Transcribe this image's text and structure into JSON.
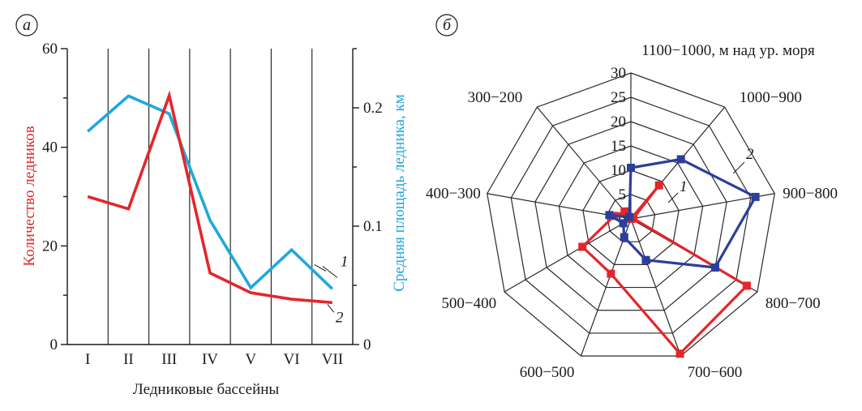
{
  "panel_labels": {
    "left": "а",
    "right": "б"
  },
  "chart_data": [
    {
      "type": "line",
      "panel": "а",
      "title": "",
      "xlabel": "Ледниковые бассейны",
      "ylabel_left": "Количество ледников",
      "ylabel_right": "Средняя площадь ледника, км",
      "categories": [
        "I",
        "II",
        "III",
        "IV",
        "V",
        "VI",
        "VII"
      ],
      "y_left": {
        "ylim": [
          0,
          60
        ],
        "ticks": [
          "0",
          "20",
          "40",
          "60"
        ],
        "tick_values": [
          0,
          20,
          40,
          60
        ]
      },
      "y_right": {
        "ylim": [
          0,
          0.25
        ],
        "ticks": [
          "0",
          "0.1",
          "0.2"
        ],
        "tick_values": [
          0,
          0.1,
          0.2
        ]
      },
      "series": [
        {
          "name": "1",
          "label": "1",
          "axis": "right",
          "color": "#1fa8dc",
          "values": [
            0.18,
            0.21,
            0.195,
            0.105,
            0.048,
            0.08,
            0.047
          ]
        },
        {
          "name": "2",
          "label": "2",
          "axis": "left",
          "color": "#e3262b",
          "values": [
            30,
            27.5,
            50.5,
            14.5,
            10.5,
            9.2,
            8.5
          ]
        }
      ]
    },
    {
      "type": "radar",
      "panel": "б",
      "title": "",
      "axis_unit_suffix": ", м над ур. моря",
      "categories": [
        "1100−1000",
        "1000−900",
        "900−800",
        "800−700",
        "700−600",
        "600−500",
        "500−400",
        "400−300",
        "300−200"
      ],
      "rlim": [
        0,
        30
      ],
      "r_ticks": [
        "0",
        "5",
        "10",
        "15",
        "20",
        "25",
        "30"
      ],
      "r_tick_values": [
        0,
        5,
        10,
        15,
        20,
        25,
        30
      ],
      "series": [
        {
          "name": "1",
          "label": "1",
          "color": "#e3262b",
          "values": [
            0,
            9,
            0.5,
            27.5,
            29.5,
            12,
            11.5,
            3.5,
            2
          ]
        },
        {
          "name": "2",
          "label": "2",
          "color": "#2c3e9c",
          "values": [
            10.5,
            16,
            26,
            20,
            9,
            4,
            1.8,
            4.5,
            0.5
          ]
        }
      ]
    }
  ]
}
